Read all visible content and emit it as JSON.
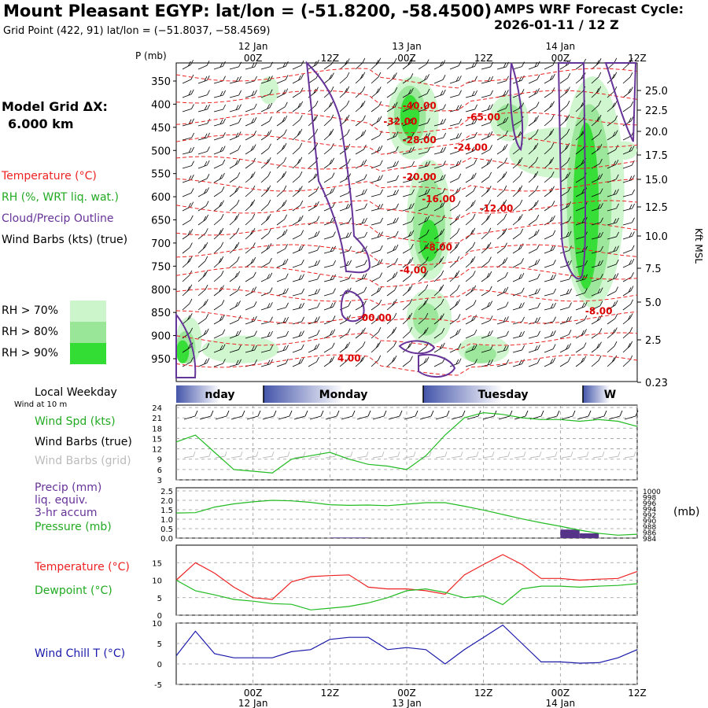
{
  "header": {
    "title": "Mount Pleasant EGYP:  lat/lon = (-51.8200, -58.4500)",
    "subtitle": "Grid Point (422, 91) lat/lon = (−51.8037, −58.4569)",
    "cycle_label": "AMPS WRF Forecast Cycle:",
    "cycle_value": "2026-01-11 / 12  Z"
  },
  "legend": {
    "model_grid_label": "Model Grid ΔX:",
    "model_grid_value": "6.000 km",
    "temperature": "Temperature (°C)",
    "rh": "RH (%, WRT liq. wat.)",
    "cloud": "Cloud/Precip Outline",
    "wind": "Wind Barbs (kts) (true)",
    "rh70": "RH > 70%",
    "rh80": "RH > 80%",
    "rh90": "RH > 90%"
  },
  "colors": {
    "temperature": "#ee2222",
    "cloud": "#663399",
    "rh70": "#ccf5cc",
    "rh80": "#99e699",
    "rh90": "#33dd33",
    "pressure": "#22bb22",
    "dewpoint": "#22bb22",
    "windchill": "#1a1aaa",
    "precip": "#553388"
  },
  "time_axis": {
    "tick_labels": [
      "00Z",
      "12Z",
      "00Z",
      "12Z",
      "00Z",
      "12Z"
    ],
    "tick_hours": [
      12,
      24,
      36,
      48,
      60,
      72
    ],
    "top_dates": [
      "12 Jan",
      "13 Jan",
      "14 Jan"
    ],
    "bottom_dates": [
      "12 Jan",
      "13 Jan",
      "14 Jan"
    ],
    "date_hours": [
      12,
      36,
      60
    ]
  },
  "weekday": {
    "title": "Local Weekday",
    "names": [
      "nday",
      "Monday",
      "Tuesday",
      "W"
    ]
  },
  "chart_data": [
    {
      "type": "contour",
      "name": "cross-section",
      "yaxis_label": "P (mb)",
      "y_ticks": [
        350,
        400,
        450,
        500,
        550,
        600,
        650,
        700,
        750,
        800,
        850,
        900,
        950
      ],
      "right_axis_label": "Kft MSL",
      "right_ticks": [
        "25.0",
        "22.5",
        "20.0",
        "17.5",
        "15.0",
        "12.5",
        "10.0",
        "7.5",
        "5.0",
        "2.5",
        "0.23"
      ],
      "temperature_labels": [
        {
          "text": "-40.00",
          "hour": 38,
          "p": 410
        },
        {
          "text": "-65.00",
          "hour": 48,
          "p": 435
        },
        {
          "text": "-32.00",
          "hour": 35,
          "p": 444
        },
        {
          "text": "-28.00",
          "hour": 38,
          "p": 484
        },
        {
          "text": "-24.00",
          "hour": 46,
          "p": 500
        },
        {
          "text": "-20.00",
          "hour": 38,
          "p": 564
        },
        {
          "text": "-16.00",
          "hour": 41,
          "p": 612
        },
        {
          "text": "-12.00",
          "hour": 50,
          "p": 632
        },
        {
          "text": "-8.00",
          "hour": 41,
          "p": 716
        },
        {
          "text": "-4.00",
          "hour": 37,
          "p": 766
        },
        {
          "text": "-00.00",
          "hour": 31,
          "p": 868
        },
        {
          "text": "4.00",
          "hour": 27,
          "p": 956
        },
        {
          "text": "-8.00",
          "hour": 66,
          "p": 854
        }
      ]
    },
    {
      "type": "line",
      "name": "wind-speed",
      "label": "Wind Spd (kts)",
      "barbs_true_label": "Wind Barbs (true)",
      "barbs_grid_label": "Wind Barbs (grid)",
      "wind_height_label": "Wind at 10 m",
      "y_ticks": [
        3,
        6,
        9,
        12,
        15,
        18,
        21,
        24
      ],
      "ylim": [
        3,
        24
      ],
      "x": [
        0,
        3,
        6,
        9,
        12,
        15,
        18,
        21,
        24,
        27,
        30,
        33,
        36,
        39,
        42,
        45,
        48,
        51,
        54,
        57,
        60,
        63,
        66,
        69,
        72
      ],
      "values": [
        14,
        16,
        11,
        6,
        5.5,
        5,
        9,
        10,
        11,
        9,
        7.5,
        7,
        6,
        10,
        16,
        21,
        22.5,
        22,
        21,
        20.5,
        20.5,
        20,
        20.5,
        20,
        18.5
      ]
    },
    {
      "type": "line",
      "name": "precip-pressure",
      "precip_label": "Precip (mm)",
      "precip_sub1": "liq. equiv.",
      "precip_sub2": "3-hr accum",
      "pressure_label": "Pressure (mb)",
      "right_axis_label": "(mb)",
      "left_ticks": [
        "0.0",
        "0.5",
        "1.0",
        "1.5",
        "2.0",
        "2.5"
      ],
      "right_ticks": [
        "1000",
        "998",
        "996",
        "994",
        "992",
        "990",
        "988",
        "986",
        "984"
      ],
      "ylim_left": [
        0,
        2.5
      ],
      "ylim_right": [
        984,
        1000
      ],
      "x": [
        0,
        3,
        6,
        9,
        12,
        15,
        18,
        21,
        24,
        27,
        30,
        33,
        36,
        39,
        42,
        45,
        48,
        51,
        54,
        57,
        60,
        63,
        66,
        69,
        72
      ],
      "pressure": [
        992.5,
        992.6,
        994.5,
        995.6,
        996.3,
        996.8,
        996.6,
        996.1,
        995.3,
        995.1,
        995.2,
        995.0,
        995.5,
        996.0,
        996.0,
        994.8,
        993.5,
        992.0,
        990.5,
        989.2,
        988.0,
        986.7,
        985.6,
        985.0,
        985.3
      ],
      "precip_x": [
        24,
        27,
        60,
        63
      ],
      "precip_values": [
        0.03,
        0.03,
        0.45,
        0.25
      ]
    },
    {
      "type": "line",
      "name": "temperature-dewpoint",
      "temp_label": "Temperature (°C)",
      "dew_label": "Dewpoint (°C)",
      "y_ticks": [
        0,
        5,
        10,
        15
      ],
      "ylim": [
        0,
        20
      ],
      "x": [
        0,
        3,
        6,
        9,
        12,
        15,
        18,
        21,
        24,
        27,
        30,
        33,
        36,
        39,
        42,
        45,
        48,
        51,
        54,
        57,
        60,
        63,
        66,
        69,
        72
      ],
      "temperature": [
        10,
        15,
        12,
        8,
        5,
        4.5,
        9.5,
        11,
        11.3,
        11.5,
        8,
        7.5,
        7.5,
        7,
        6,
        11.5,
        14.5,
        17.3,
        14.5,
        10.5,
        10.5,
        10,
        10.3,
        10.5,
        12.5
      ],
      "dewpoint": [
        10,
        7,
        5.8,
        4.5,
        4,
        3.3,
        3.1,
        1.5,
        2,
        2.5,
        3.5,
        5,
        7,
        7.5,
        6.5,
        5,
        5.5,
        3,
        7.5,
        8.3,
        8.3,
        8,
        8.3,
        8.5,
        9
      ]
    },
    {
      "type": "line",
      "name": "wind-chill",
      "label": "Wind Chill T (°C)",
      "y_ticks": [
        -5,
        0,
        5,
        10
      ],
      "ylim": [
        -5,
        10
      ],
      "x": [
        0,
        3,
        6,
        9,
        12,
        15,
        18,
        21,
        24,
        27,
        30,
        33,
        36,
        39,
        42,
        45,
        48,
        51,
        54,
        57,
        60,
        63,
        66,
        69,
        72
      ],
      "values": [
        2,
        8,
        2.5,
        1.5,
        1.5,
        1.5,
        3,
        3.5,
        6,
        6.5,
        6.5,
        3.5,
        4,
        3.5,
        0,
        3.5,
        6.5,
        9.5,
        5,
        0.5,
        0.5,
        0.2,
        0.3,
        1.5,
        3.5
      ]
    }
  ]
}
